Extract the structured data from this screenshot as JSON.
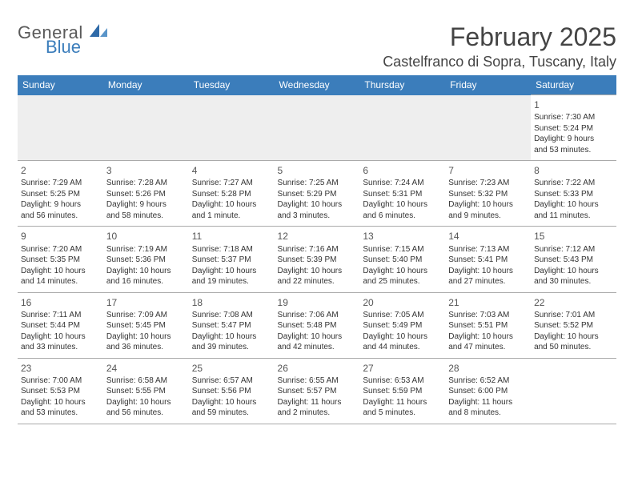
{
  "brand": {
    "word1": "General",
    "word2": "Blue",
    "accent_color": "#3b7dbb",
    "sail_color": "#2f6aa8"
  },
  "title": {
    "month": "February 2025",
    "location": "Castelfranco di Sopra, Tuscany, Italy"
  },
  "header_color": "#3b7dbb",
  "weekdays": [
    "Sunday",
    "Monday",
    "Tuesday",
    "Wednesday",
    "Thursday",
    "Friday",
    "Saturday"
  ],
  "first_weekday_index": 6,
  "labels": {
    "sunrise": "Sunrise:",
    "sunset": "Sunset:",
    "daylight_prefix": "Daylight:",
    "minutes_suffix": "minutes."
  },
  "days": [
    {
      "n": 1,
      "sunrise": "7:30 AM",
      "sunset": "5:24 PM",
      "dl": "9 hours and 53"
    },
    {
      "n": 2,
      "sunrise": "7:29 AM",
      "sunset": "5:25 PM",
      "dl": "9 hours and 56"
    },
    {
      "n": 3,
      "sunrise": "7:28 AM",
      "sunset": "5:26 PM",
      "dl": "9 hours and 58"
    },
    {
      "n": 4,
      "sunrise": "7:27 AM",
      "sunset": "5:28 PM",
      "dl": "10 hours and 1"
    },
    {
      "n": 5,
      "sunrise": "7:25 AM",
      "sunset": "5:29 PM",
      "dl": "10 hours and 3"
    },
    {
      "n": 6,
      "sunrise": "7:24 AM",
      "sunset": "5:31 PM",
      "dl": "10 hours and 6"
    },
    {
      "n": 7,
      "sunrise": "7:23 AM",
      "sunset": "5:32 PM",
      "dl": "10 hours and 9"
    },
    {
      "n": 8,
      "sunrise": "7:22 AM",
      "sunset": "5:33 PM",
      "dl": "10 hours and 11"
    },
    {
      "n": 9,
      "sunrise": "7:20 AM",
      "sunset": "5:35 PM",
      "dl": "10 hours and 14"
    },
    {
      "n": 10,
      "sunrise": "7:19 AM",
      "sunset": "5:36 PM",
      "dl": "10 hours and 16"
    },
    {
      "n": 11,
      "sunrise": "7:18 AM",
      "sunset": "5:37 PM",
      "dl": "10 hours and 19"
    },
    {
      "n": 12,
      "sunrise": "7:16 AM",
      "sunset": "5:39 PM",
      "dl": "10 hours and 22"
    },
    {
      "n": 13,
      "sunrise": "7:15 AM",
      "sunset": "5:40 PM",
      "dl": "10 hours and 25"
    },
    {
      "n": 14,
      "sunrise": "7:13 AM",
      "sunset": "5:41 PM",
      "dl": "10 hours and 27"
    },
    {
      "n": 15,
      "sunrise": "7:12 AM",
      "sunset": "5:43 PM",
      "dl": "10 hours and 30"
    },
    {
      "n": 16,
      "sunrise": "7:11 AM",
      "sunset": "5:44 PM",
      "dl": "10 hours and 33"
    },
    {
      "n": 17,
      "sunrise": "7:09 AM",
      "sunset": "5:45 PM",
      "dl": "10 hours and 36"
    },
    {
      "n": 18,
      "sunrise": "7:08 AM",
      "sunset": "5:47 PM",
      "dl": "10 hours and 39"
    },
    {
      "n": 19,
      "sunrise": "7:06 AM",
      "sunset": "5:48 PM",
      "dl": "10 hours and 42"
    },
    {
      "n": 20,
      "sunrise": "7:05 AM",
      "sunset": "5:49 PM",
      "dl": "10 hours and 44"
    },
    {
      "n": 21,
      "sunrise": "7:03 AM",
      "sunset": "5:51 PM",
      "dl": "10 hours and 47"
    },
    {
      "n": 22,
      "sunrise": "7:01 AM",
      "sunset": "5:52 PM",
      "dl": "10 hours and 50"
    },
    {
      "n": 23,
      "sunrise": "7:00 AM",
      "sunset": "5:53 PM",
      "dl": "10 hours and 53"
    },
    {
      "n": 24,
      "sunrise": "6:58 AM",
      "sunset": "5:55 PM",
      "dl": "10 hours and 56"
    },
    {
      "n": 25,
      "sunrise": "6:57 AM",
      "sunset": "5:56 PM",
      "dl": "10 hours and 59"
    },
    {
      "n": 26,
      "sunrise": "6:55 AM",
      "sunset": "5:57 PM",
      "dl": "11 hours and 2"
    },
    {
      "n": 27,
      "sunrise": "6:53 AM",
      "sunset": "5:59 PM",
      "dl": "11 hours and 5"
    },
    {
      "n": 28,
      "sunrise": "6:52 AM",
      "sunset": "6:00 PM",
      "dl": "11 hours and 8"
    }
  ],
  "daylight_word_map": {
    "1": "minute.",
    "default": "minutes."
  }
}
